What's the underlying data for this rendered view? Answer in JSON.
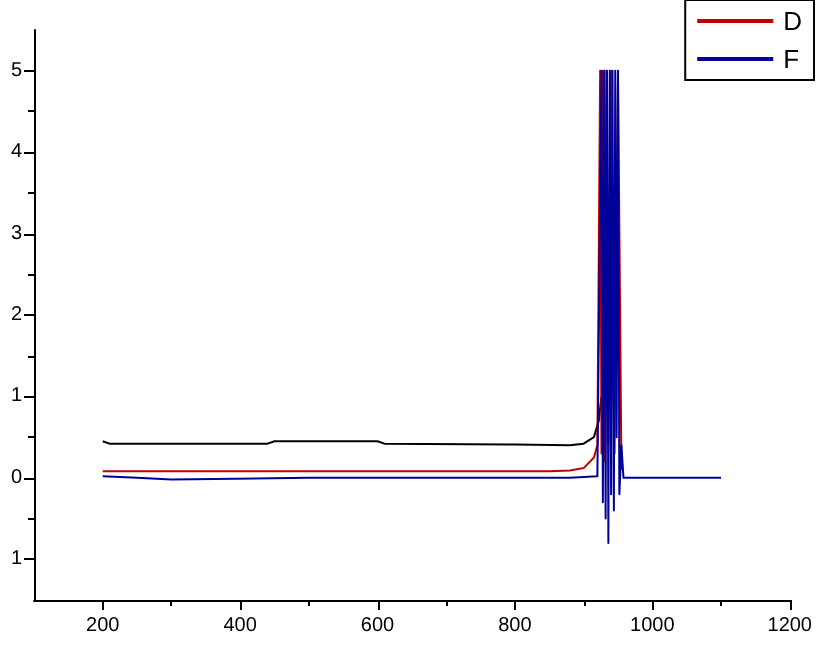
{
  "chart_data": {
    "type": "line",
    "xlim": [
      100,
      1200
    ],
    "ylim": [
      -1.5,
      5.5
    ],
    "xticks": [
      200,
      400,
      600,
      800,
      1000,
      1200
    ],
    "yticks": [
      {
        "value": -1,
        "label": "1"
      },
      0,
      1,
      2,
      3,
      4,
      5
    ],
    "grid": false,
    "legend": "top right",
    "marker": "none",
    "line_style": "solid",
    "series": [
      {
        "color": "#000000",
        "x": [
          200,
          210,
          300,
          440,
          450,
          600,
          610,
          800,
          880,
          900,
          915,
          922,
          926
        ],
        "values": [
          0.45,
          0.42,
          0.42,
          0.42,
          0.45,
          0.45,
          0.42,
          0.41,
          0.4,
          0.42,
          0.5,
          0.7,
          1.0
        ]
      },
      {
        "name": "D",
        "color": "#c00000",
        "x": [
          200,
          300,
          500,
          700,
          850,
          880,
          900,
          915,
          920,
          924,
          926,
          928,
          930,
          933,
          936,
          940,
          945,
          950,
          955
        ],
        "values": [
          0.08,
          0.08,
          0.08,
          0.08,
          0.08,
          0.09,
          0.12,
          0.25,
          0.4,
          5,
          0.3,
          5,
          0.2,
          5,
          0.4,
          5,
          0.3,
          5,
          0.1
        ]
      },
      {
        "name": "F",
        "color": "#000099",
        "x": [
          200,
          250,
          300,
          500,
          700,
          880,
          920,
          926,
          928,
          930,
          932,
          934,
          936,
          938,
          940,
          942,
          944,
          946,
          948,
          950,
          952,
          955,
          958,
          960,
          1000,
          1100
        ],
        "values": [
          0.02,
          0.0,
          -0.02,
          0.0,
          0.0,
          0.0,
          0.02,
          5,
          -0.3,
          5,
          -0.5,
          5,
          -0.8,
          5,
          -0.2,
          5,
          -0.4,
          5,
          0.5,
          5,
          -0.2,
          0.4,
          0.0,
          0.0,
          0.0,
          0.0
        ]
      }
    ]
  }
}
